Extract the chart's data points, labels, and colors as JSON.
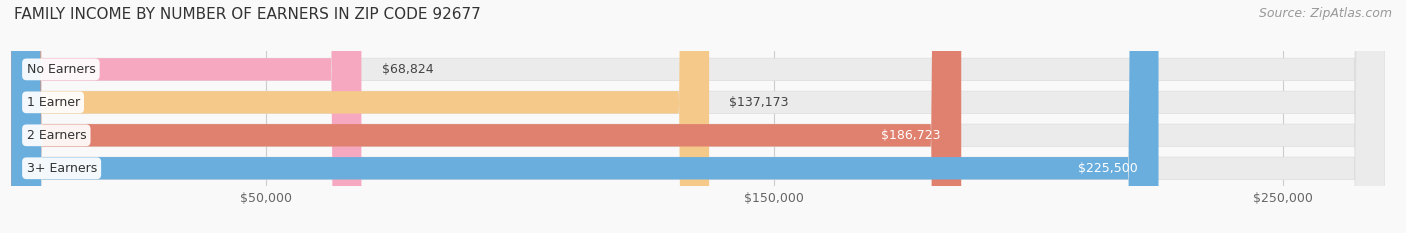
{
  "title": "FAMILY INCOME BY NUMBER OF EARNERS IN ZIP CODE 92677",
  "source": "Source: ZipAtlas.com",
  "categories": [
    "No Earners",
    "1 Earner",
    "2 Earners",
    "3+ Earners"
  ],
  "values": [
    68824,
    137173,
    186723,
    225500
  ],
  "labels": [
    "$68,824",
    "$137,173",
    "$186,723",
    "$225,500"
  ],
  "bar_colors": [
    "#f5a8bf",
    "#f5c98a",
    "#e0806e",
    "#6aaede"
  ],
  "bar_bg_color": "#ebebeb",
  "label_colors": [
    "#555555",
    "#555555",
    "#ffffff",
    "#ffffff"
  ],
  "xmax": 270000,
  "xtick_positions": [
    50000,
    150000,
    250000
  ],
  "xtick_labels": [
    "$50,000",
    "$150,000",
    "$250,000"
  ],
  "title_fontsize": 11,
  "source_fontsize": 9,
  "bar_label_fontsize": 9,
  "category_fontsize": 9,
  "tick_fontsize": 9,
  "background_color": "#f9f9f9",
  "bar_height": 0.68,
  "bar_spacing": 1.0
}
